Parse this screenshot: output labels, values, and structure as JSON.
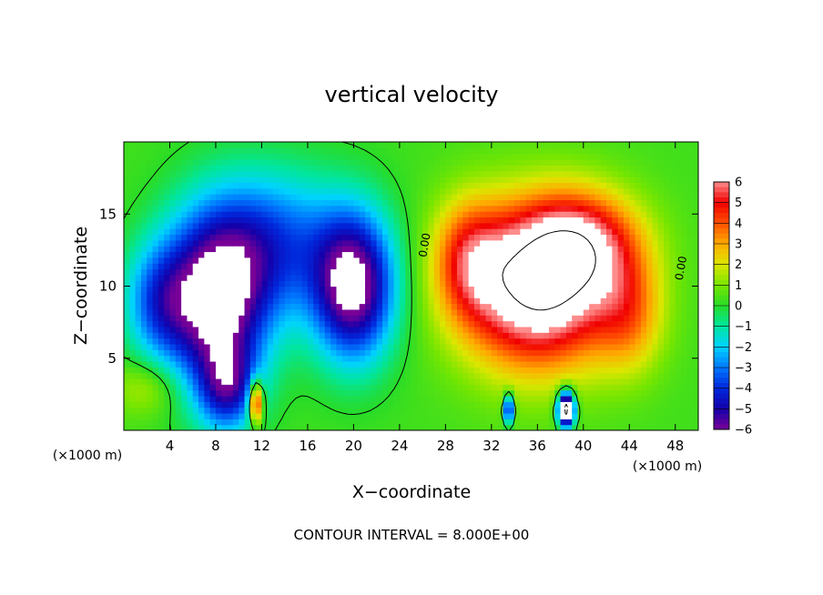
{
  "chart_data": {
    "type": "heatmap",
    "title": "vertical velocity",
    "xlabel": "X−coordinate",
    "ylabel": "Z−coordinate",
    "x_unit": "(×1000 m)",
    "colorbar_unit": "(×1000 m)",
    "footer": "CONTOUR INTERVAL = 8.000E+00",
    "xlim": [
      0,
      50
    ],
    "ylim": [
      0,
      20
    ],
    "x_ticks": [
      4,
      8,
      12,
      16,
      20,
      24,
      28,
      32,
      36,
      40,
      44,
      48
    ],
    "x_tick_labels": [
      "4",
      "8",
      "12",
      "16",
      "20",
      "24",
      "28",
      "32",
      "36",
      "40",
      "44",
      "48"
    ],
    "y_ticks": [
      5,
      10,
      15
    ],
    "y_tick_labels": [
      "5",
      "10",
      "15"
    ],
    "contour_label": "0.00",
    "colorbar": {
      "ticks": [
        6,
        5,
        4,
        3,
        2,
        1,
        0,
        -1,
        -2,
        -3,
        -4,
        -5,
        -6
      ],
      "tick_labels": [
        "6",
        "5",
        "4",
        "3",
        "2",
        "1",
        "0",
        "−1",
        "−2",
        "−3",
        "−4",
        "−5",
        "−6"
      ],
      "range": [
        -6,
        6
      ]
    },
    "background_value": 0.3,
    "features": [
      {
        "x": 8,
        "z": 9,
        "sx": 4.5,
        "sz": 6,
        "amp": -7
      },
      {
        "x": 20,
        "z": 10,
        "sx": 3.5,
        "sz": 5,
        "amp": -7
      },
      {
        "x": 13,
        "z": 13,
        "sx": 6,
        "sz": 5,
        "amp": -3.5
      },
      {
        "x": 3,
        "z": 9,
        "sx": 3,
        "sz": 4,
        "amp": -3
      },
      {
        "x": 9,
        "z": 3,
        "sx": 2.5,
        "sz": 3,
        "amp": -4
      },
      {
        "x": 11.5,
        "z": 2,
        "sx": 0.6,
        "sz": 1.5,
        "amp": 6
      },
      {
        "x": 36,
        "z": 10,
        "sx": 6.5,
        "sz": 5.5,
        "amp": 8
      },
      {
        "x": 40,
        "z": 13,
        "sx": 5,
        "sz": 3.5,
        "amp": 4
      },
      {
        "x": 30,
        "z": 12,
        "sx": 3,
        "sz": 4,
        "amp": 3
      },
      {
        "x": 44,
        "z": 8,
        "sx": 3,
        "sz": 4,
        "amp": 2.5
      },
      {
        "x": 38.5,
        "z": 1.5,
        "sx": 0.7,
        "sz": 1.2,
        "amp": -10
      },
      {
        "x": 33.5,
        "z": 1.5,
        "sx": 0.4,
        "sz": 1,
        "amp": -6
      },
      {
        "x": 2,
        "z": 3,
        "sx": 3,
        "sz": 2,
        "amp": 1.5
      }
    ]
  }
}
